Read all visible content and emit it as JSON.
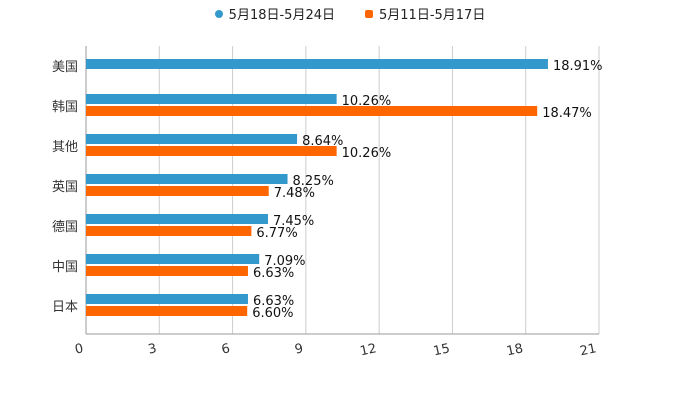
{
  "chart_data": {
    "type": "bar",
    "orientation": "horizontal",
    "categories": [
      "美国",
      "韩国",
      "其他",
      "英国",
      "德国",
      "中国",
      "日本"
    ],
    "series": [
      {
        "name": "5月18日-5月24日",
        "color": "#3399cc",
        "values": [
          18.91,
          10.26,
          8.64,
          8.25,
          7.45,
          7.09,
          6.63
        ],
        "labels": [
          "18.91%",
          "10.26%",
          "8.64%",
          "8.25%",
          "7.45%",
          "7.09%",
          "6.63%"
        ]
      },
      {
        "name": "5月11日-5月17日",
        "color": "#ff6600",
        "values": [
          null,
          18.47,
          10.26,
          7.48,
          6.77,
          6.63,
          6.6
        ],
        "labels": [
          "",
          "18.47%",
          "10.26%",
          "7.48%",
          "6.77%",
          "6.63%",
          "6.60%"
        ]
      }
    ],
    "xlim": [
      0,
      21
    ],
    "xticks": [
      0,
      3,
      6,
      9,
      12,
      15,
      18,
      21
    ],
    "grid": true,
    "legend": "top-center",
    "title": "",
    "xlabel": "",
    "ylabel": ""
  }
}
